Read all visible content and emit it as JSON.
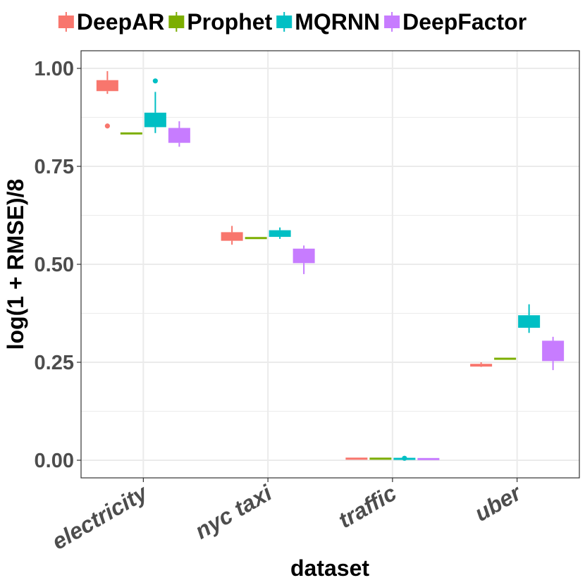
{
  "chart_data": {
    "type": "boxplot",
    "title": "",
    "xlabel": "dataset",
    "ylabel": "log(1 + RMSE)/8",
    "ylim": [
      -0.045,
      1.045
    ],
    "yticks": [
      0.0,
      0.25,
      0.5,
      0.75,
      1.0
    ],
    "ytick_labels": [
      "0.00",
      "0.25",
      "0.50",
      "0.75",
      "1.00"
    ],
    "categories": [
      "electricity",
      "nyc taxi",
      "traffic",
      "uber"
    ],
    "legend_position": "top",
    "series": [
      {
        "name": "DeepAR",
        "color": "#F8766D",
        "boxes": [
          {
            "category": "electricity",
            "min": 0.935,
            "q1": 0.942,
            "median": 0.955,
            "q3": 0.97,
            "max": 0.993,
            "outliers": [
              0.853
            ]
          },
          {
            "category": "nyc taxi",
            "min": 0.55,
            "q1": 0.56,
            "median": 0.568,
            "q3": 0.582,
            "max": 0.598,
            "outliers": []
          },
          {
            "category": "traffic",
            "min": 0.003,
            "q1": 0.003,
            "median": 0.004,
            "q3": 0.005,
            "max": 0.005,
            "outliers": []
          },
          {
            "category": "uber",
            "min": 0.238,
            "q1": 0.239,
            "median": 0.242,
            "q3": 0.246,
            "max": 0.25,
            "outliers": []
          }
        ]
      },
      {
        "name": "Prophet",
        "color": "#7CAE00",
        "boxes": [
          {
            "category": "electricity",
            "min": 0.834,
            "q1": 0.834,
            "median": 0.834,
            "q3": 0.834,
            "max": 0.834,
            "outliers": []
          },
          {
            "category": "nyc taxi",
            "min": 0.567,
            "q1": 0.567,
            "median": 0.567,
            "q3": 0.567,
            "max": 0.567,
            "outliers": []
          },
          {
            "category": "traffic",
            "min": 0.004,
            "q1": 0.004,
            "median": 0.004,
            "q3": 0.004,
            "max": 0.004,
            "outliers": []
          },
          {
            "category": "uber",
            "min": 0.259,
            "q1": 0.259,
            "median": 0.259,
            "q3": 0.259,
            "max": 0.259,
            "outliers": []
          }
        ]
      },
      {
        "name": "MQRNN",
        "color": "#00BFC4",
        "boxes": [
          {
            "category": "electricity",
            "min": 0.835,
            "q1": 0.85,
            "median": 0.862,
            "q3": 0.887,
            "max": 0.94,
            "outliers": [
              0.968
            ]
          },
          {
            "category": "nyc taxi",
            "min": 0.565,
            "q1": 0.57,
            "median": 0.575,
            "q3": 0.587,
            "max": 0.594,
            "outliers": []
          },
          {
            "category": "traffic",
            "min": 0.003,
            "q1": 0.003,
            "median": 0.004,
            "q3": 0.004,
            "max": 0.005,
            "outliers": [
              0.005
            ]
          },
          {
            "category": "uber",
            "min": 0.325,
            "q1": 0.338,
            "median": 0.345,
            "q3": 0.37,
            "max": 0.398,
            "outliers": []
          }
        ]
      },
      {
        "name": "DeepFactor",
        "color": "#C77CFF",
        "boxes": [
          {
            "category": "electricity",
            "min": 0.8,
            "q1": 0.81,
            "median": 0.825,
            "q3": 0.848,
            "max": 0.865,
            "outliers": []
          },
          {
            "category": "nyc taxi",
            "min": 0.475,
            "q1": 0.503,
            "median": 0.515,
            "q3": 0.54,
            "max": 0.548,
            "outliers": []
          },
          {
            "category": "traffic",
            "min": 0.002,
            "q1": 0.002,
            "median": 0.003,
            "q3": 0.004,
            "max": 0.004,
            "outliers": []
          },
          {
            "category": "uber",
            "min": 0.23,
            "q1": 0.253,
            "median": 0.265,
            "q3": 0.305,
            "max": 0.315,
            "outliers": []
          }
        ]
      }
    ]
  }
}
